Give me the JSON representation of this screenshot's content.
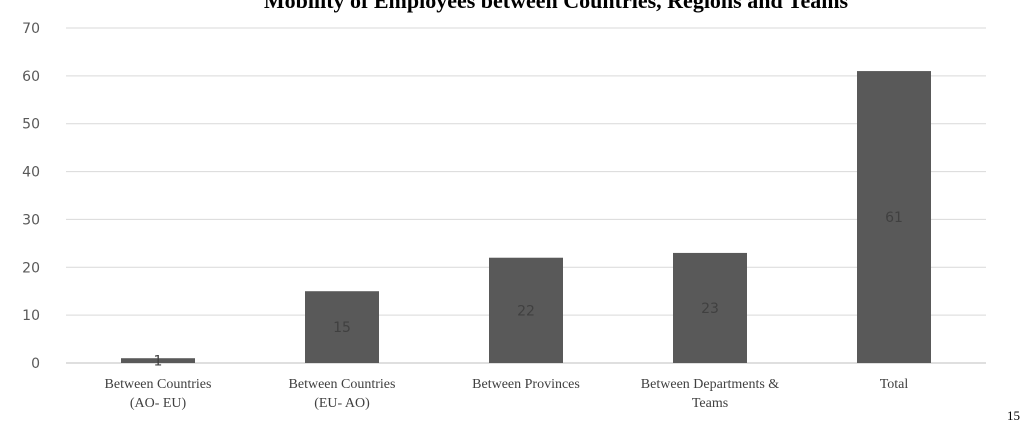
{
  "page_number": "15",
  "colors": {
    "bar": "#595959",
    "grid": "#d9d9d9",
    "text": "#595959"
  },
  "chart_data": {
    "type": "bar",
    "title": "Mobility of Employees between Countries, Regions and Teams",
    "categories": [
      [
        "Between Countries",
        "(AO- EU)"
      ],
      [
        "Between Countries",
        "(EU- AO)"
      ],
      [
        "Between Provinces"
      ],
      [
        "Between Departments &",
        "Teams"
      ],
      [
        "Total"
      ]
    ],
    "values": [
      1,
      15,
      22,
      23,
      61
    ],
    "data_labels": [
      "1",
      "15",
      "22",
      "23",
      "61"
    ],
    "ylim": [
      0,
      70
    ],
    "yticks": [
      0,
      10,
      20,
      30,
      40,
      50,
      60,
      70
    ],
    "grid": true,
    "legend": "none"
  }
}
